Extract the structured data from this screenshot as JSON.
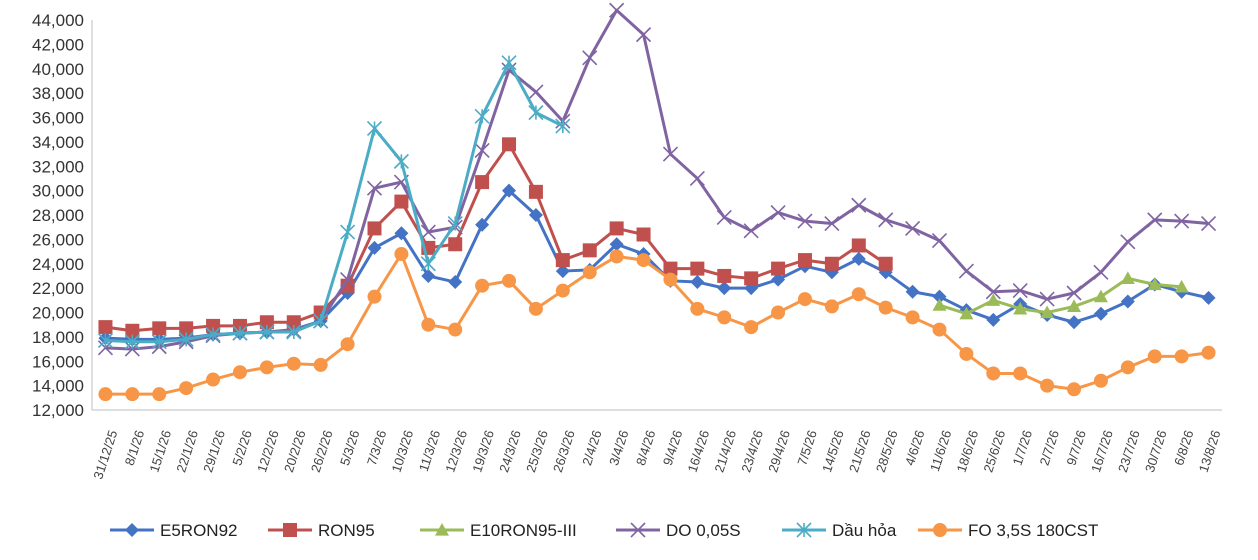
{
  "chart_data": {
    "type": "line",
    "title": "",
    "xlabel": "",
    "ylabel": "",
    "ylim": [
      12000,
      44000
    ],
    "y_ticks": [
      "12,000",
      "14,000",
      "16,000",
      "18,000",
      "20,000",
      "22,000",
      "24,000",
      "26,000",
      "28,000",
      "30,000",
      "32,000",
      "34,000",
      "36,000",
      "38,000",
      "40,000",
      "42,000",
      "44,000"
    ],
    "y_tick_values": [
      12000,
      14000,
      16000,
      18000,
      20000,
      22000,
      24000,
      26000,
      28000,
      30000,
      32000,
      34000,
      36000,
      38000,
      40000,
      42000,
      44000
    ],
    "x_tick_labels": [
      "31/12/25",
      "8/1/26",
      "15/1/26",
      "22/1/26",
      "29/1/26",
      "5/2/26",
      "12/2/26",
      "20/2/26",
      "26/2/26",
      "5/3/26",
      "7/3/26",
      "10/3/26",
      "11/3/26",
      "12/3/26",
      "19/3/26",
      "24/3/26",
      "25/3/26",
      "26/3/26",
      "2/4/26",
      "3/4/26",
      "8/4/26",
      "9/4/26",
      "16/4/26",
      "21/4/26",
      "23/4/26",
      "29/4/26",
      "7/5/26",
      "14/5/26",
      "21/5/26",
      "28/5/26",
      "4/6/26",
      "11/6/26",
      "18/6/26",
      "25/6/26",
      "1/7/26",
      "2/7/26",
      "9/7/26",
      "16/7/26",
      "23/7/26",
      "30/7/26",
      "6/8/26",
      "13/8/26"
    ],
    "grid": false,
    "legend_position": "bottom",
    "series": [
      {
        "name": "E5RON92",
        "color": "#4472C4",
        "marker": "diamond",
        "values": [
          17900,
          17800,
          17800,
          17900,
          18200,
          18300,
          18400,
          18600,
          19300,
          21600,
          25300,
          26500,
          23000,
          22500,
          27200,
          30000,
          28000,
          23400,
          23500,
          25600,
          24800,
          22600,
          22500,
          22000,
          22000,
          22700,
          23800,
          23300,
          24400,
          23300,
          21700,
          21300,
          20200,
          19400,
          20700,
          19800,
          19200,
          19900,
          20900,
          22300,
          21700,
          21200
        ]
      },
      {
        "name": "RON95",
        "color": "#C0504D",
        "marker": "square",
        "values": [
          18800,
          18500,
          18700,
          18700,
          18900,
          18900,
          19200,
          19200,
          20000,
          22200,
          26900,
          29100,
          25300,
          25600,
          30700,
          33800,
          29900,
          24300,
          25100,
          26900,
          26400,
          23600,
          23600,
          23000,
          22800,
          23600,
          24300,
          24000,
          25500,
          24000,
          null,
          null,
          null,
          null,
          null,
          null,
          null,
          null,
          null,
          null,
          null,
          null
        ]
      },
      {
        "name": "E10RON95-III",
        "color": "#9BBB59",
        "marker": "triangle",
        "values": [
          null,
          null,
          null,
          null,
          null,
          null,
          null,
          null,
          null,
          null,
          null,
          null,
          null,
          null,
          null,
          null,
          null,
          null,
          null,
          null,
          null,
          null,
          null,
          null,
          null,
          null,
          null,
          null,
          null,
          null,
          null,
          20600,
          19900,
          21000,
          20300,
          20000,
          20500,
          21300,
          22800,
          22300,
          22100,
          null
        ]
      },
      {
        "name": "DO 0,05S",
        "color": "#8064A2",
        "marker": "x",
        "values": [
          17100,
          17000,
          17200,
          17600,
          18100,
          18300,
          18400,
          18500,
          19300,
          22700,
          30200,
          30700,
          26600,
          27000,
          33300,
          39900,
          38100,
          35700,
          40900,
          44800,
          42800,
          33000,
          31000,
          27800,
          26700,
          28200,
          27500,
          27300,
          28800,
          27600,
          26900,
          25900,
          23400,
          21700,
          21800,
          21100,
          21600,
          23300,
          25800,
          27600,
          27500,
          27300
        ]
      },
      {
        "name": "Dầu hỏa",
        "color": "#4BACC6",
        "marker": "star",
        "values": [
          17700,
          17600,
          17600,
          17800,
          18200,
          18300,
          18400,
          18400,
          19300,
          26600,
          35100,
          32400,
          24000,
          27300,
          36100,
          40500,
          36400,
          35300,
          null,
          null,
          null,
          null,
          null,
          null,
          null,
          null,
          null,
          null,
          null,
          null,
          null,
          null,
          null,
          null,
          null,
          null,
          null,
          null,
          null,
          null,
          null,
          null
        ]
      },
      {
        "name": "FO 3,5S 180CST",
        "color": "#F79646",
        "marker": "circle",
        "values": [
          13300,
          13300,
          13300,
          13800,
          14500,
          15100,
          15500,
          15800,
          15700,
          17400,
          21300,
          24800,
          19000,
          18600,
          22200,
          22600,
          20300,
          21800,
          23300,
          24600,
          24300,
          22700,
          20300,
          19600,
          18800,
          20000,
          21100,
          20500,
          21500,
          20400,
          19600,
          18600,
          16600,
          15000,
          15000,
          14000,
          13700,
          14400,
          15500,
          16400,
          16400,
          16700
        ]
      }
    ]
  }
}
